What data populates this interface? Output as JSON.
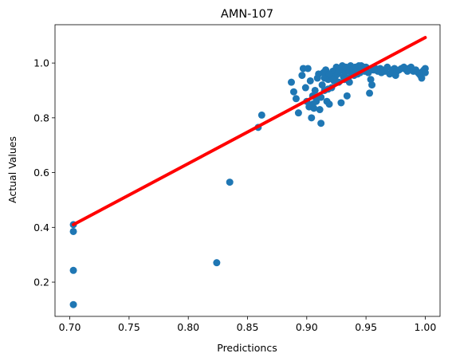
{
  "chart_data": {
    "type": "scatter",
    "title": "AMN-107",
    "xlabel": "Predictioncs",
    "ylabel": "Actual Values",
    "xlim": [
      0.6875,
      1.0125
    ],
    "ylim": [
      0.075,
      1.14
    ],
    "xticks": [
      "0.70",
      "0.75",
      "0.80",
      "0.85",
      "0.90",
      "0.95",
      "1.00"
    ],
    "yticks": [
      "0.2",
      "0.4",
      "0.6",
      "0.8",
      "1.0"
    ],
    "grid": false,
    "scatter_color": "#1f77b4",
    "line_color": "#ff0000",
    "fit_line": {
      "x": [
        0.703,
        1.0
      ],
      "y": [
        0.41,
        1.093
      ]
    },
    "points": [
      [
        0.703,
        0.41
      ],
      [
        0.703,
        0.385
      ],
      [
        0.703,
        0.243
      ],
      [
        0.703,
        0.118
      ],
      [
        0.824,
        0.271
      ],
      [
        0.835,
        0.565
      ],
      [
        0.859,
        0.765
      ],
      [
        0.862,
        0.81
      ],
      [
        0.887,
        0.93
      ],
      [
        0.889,
        0.895
      ],
      [
        0.891,
        0.87
      ],
      [
        0.893,
        0.818
      ],
      [
        0.896,
        0.955
      ],
      [
        0.897,
        0.98
      ],
      [
        0.899,
        0.91
      ],
      [
        0.9,
        0.86
      ],
      [
        0.901,
        0.98
      ],
      [
        0.902,
        0.84
      ],
      [
        0.903,
        0.935
      ],
      [
        0.904,
        0.8
      ],
      [
        0.905,
        0.88
      ],
      [
        0.906,
        0.835
      ],
      [
        0.907,
        0.9
      ],
      [
        0.908,
        0.86
      ],
      [
        0.909,
        0.945
      ],
      [
        0.91,
        0.875
      ],
      [
        0.911,
        0.83
      ],
      [
        0.912,
        0.78
      ],
      [
        0.913,
        0.92
      ],
      [
        0.914,
        0.965
      ],
      [
        0.915,
        0.9
      ],
      [
        0.916,
        0.975
      ],
      [
        0.917,
        0.86
      ],
      [
        0.918,
        0.94
      ],
      [
        0.919,
        0.85
      ],
      [
        0.92,
        0.955
      ],
      [
        0.921,
        0.91
      ],
      [
        0.922,
        0.97
      ],
      [
        0.923,
        0.935
      ],
      [
        0.924,
        0.95
      ],
      [
        0.925,
        0.985
      ],
      [
        0.926,
        0.96
      ],
      [
        0.927,
        0.93
      ],
      [
        0.928,
        0.975
      ],
      [
        0.929,
        0.855
      ],
      [
        0.93,
        0.99
      ],
      [
        0.931,
        0.95
      ],
      [
        0.932,
        0.965
      ],
      [
        0.933,
        0.985
      ],
      [
        0.934,
        0.88
      ],
      [
        0.935,
        0.945
      ],
      [
        0.936,
        0.97
      ],
      [
        0.937,
        0.99
      ],
      [
        0.938,
        0.96
      ],
      [
        0.939,
        0.975
      ],
      [
        0.94,
        0.955
      ],
      [
        0.941,
        0.985
      ],
      [
        0.942,
        0.97
      ],
      [
        0.943,
        0.98
      ],
      [
        0.944,
        0.99
      ],
      [
        0.945,
        0.965
      ],
      [
        0.946,
        0.98
      ],
      [
        0.947,
        0.975
      ],
      [
        0.948,
        0.985
      ],
      [
        0.949,
        0.97
      ],
      [
        0.95,
        0.98
      ],
      [
        0.952,
        0.965
      ],
      [
        0.953,
        0.89
      ],
      [
        0.954,
        0.94
      ],
      [
        0.955,
        0.92
      ],
      [
        0.956,
        0.975
      ],
      [
        0.958,
        0.98
      ],
      [
        0.96,
        0.97
      ],
      [
        0.962,
        0.98
      ],
      [
        0.964,
        0.975
      ],
      [
        0.966,
        0.97
      ],
      [
        0.968,
        0.985
      ],
      [
        0.97,
        0.96
      ],
      [
        0.972,
        0.975
      ],
      [
        0.974,
        0.98
      ],
      [
        0.976,
        0.97
      ],
      [
        0.978,
        0.975
      ],
      [
        0.98,
        0.98
      ],
      [
        0.982,
        0.985
      ],
      [
        0.984,
        0.975
      ],
      [
        0.986,
        0.98
      ],
      [
        0.988,
        0.985
      ],
      [
        0.99,
        0.97
      ],
      [
        0.992,
        0.975
      ],
      [
        0.994,
        0.965
      ],
      [
        0.996,
        0.955
      ],
      [
        0.997,
        0.945
      ],
      [
        0.998,
        0.97
      ],
      [
        0.999,
        0.975
      ],
      [
        1.0,
        0.98
      ],
      [
        1.0,
        0.965
      ],
      [
        0.91,
        0.96
      ],
      [
        0.915,
        0.945
      ],
      [
        0.905,
        0.85
      ],
      [
        0.918,
        0.905
      ],
      [
        0.927,
        0.97
      ],
      [
        0.936,
        0.93
      ],
      [
        0.946,
        0.99
      ],
      [
        0.943,
        0.96
      ],
      [
        0.922,
        0.94
      ],
      [
        0.912,
        0.875
      ],
      [
        0.919,
        0.96
      ],
      [
        0.932,
        0.94
      ],
      [
        0.95,
        0.985
      ],
      [
        0.957,
        0.975
      ],
      [
        0.963,
        0.965
      ],
      [
        0.975,
        0.955
      ],
      [
        0.985,
        0.97
      ],
      [
        0.995,
        0.96
      ]
    ]
  }
}
